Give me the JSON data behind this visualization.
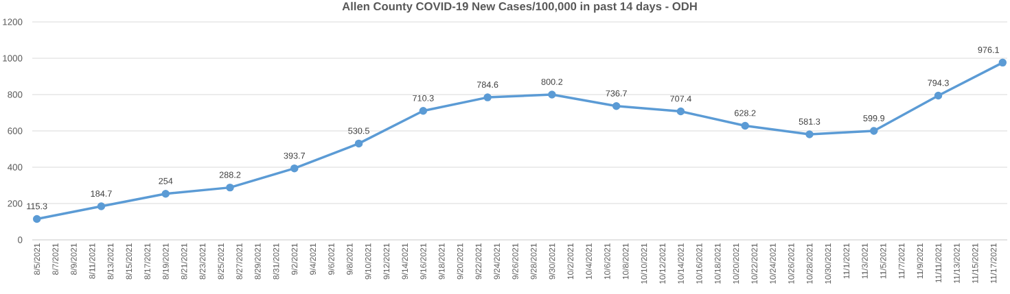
{
  "chart_data": {
    "type": "line",
    "title": "Allen County COVID-19 New Cases/100,000 in past 14 days - ODH",
    "x": [
      "2021-08-05",
      "2021-08-12",
      "2021-08-19",
      "2021-08-26",
      "2021-09-02",
      "2021-09-09",
      "2021-09-16",
      "2021-09-23",
      "2021-09-30",
      "2021-10-07",
      "2021-10-14",
      "2021-10-21",
      "2021-10-28",
      "2021-11-04",
      "2021-11-11",
      "2021-11-18"
    ],
    "values": [
      115.3,
      184.7,
      254,
      288.2,
      393.7,
      530.5,
      710.3,
      784.6,
      800.2,
      736.7,
      707.4,
      628.2,
      581.3,
      599.9,
      794.3,
      976.1
    ],
    "color": "#5b9bd5",
    "marker": "circle",
    "data_labels": true,
    "grid": "y",
    "xlim": [
      "2021-08-04T12:00",
      "2021-11-18T12:00"
    ],
    "xticks": [
      {
        "value": "2021-08-05",
        "label": "8/5/2021"
      },
      {
        "value": "2021-08-07",
        "label": "8/7/2021"
      },
      {
        "value": "2021-08-09",
        "label": "8/9/2021"
      },
      {
        "value": "2021-08-11",
        "label": "8/11/2021"
      },
      {
        "value": "2021-08-13",
        "label": "8/13/2021"
      },
      {
        "value": "2021-08-15",
        "label": "8/15/2021"
      },
      {
        "value": "2021-08-17",
        "label": "8/17/2021"
      },
      {
        "value": "2021-08-19",
        "label": "8/19/2021"
      },
      {
        "value": "2021-08-21",
        "label": "8/21/2021"
      },
      {
        "value": "2021-08-23",
        "label": "8/23/2021"
      },
      {
        "value": "2021-08-25",
        "label": "8/25/2021"
      },
      {
        "value": "2021-08-27",
        "label": "8/27/2021"
      },
      {
        "value": "2021-08-29",
        "label": "8/29/2021"
      },
      {
        "value": "2021-08-31",
        "label": "8/31/2021"
      },
      {
        "value": "2021-09-02",
        "label": "9/2/2021"
      },
      {
        "value": "2021-09-04",
        "label": "9/4/2021"
      },
      {
        "value": "2021-09-06",
        "label": "9/6/2021"
      },
      {
        "value": "2021-09-08",
        "label": "9/8/2021"
      },
      {
        "value": "2021-09-10",
        "label": "9/10/2021"
      },
      {
        "value": "2021-09-12",
        "label": "9/12/2021"
      },
      {
        "value": "2021-09-14",
        "label": "9/14/2021"
      },
      {
        "value": "2021-09-16",
        "label": "9/16/2021"
      },
      {
        "value": "2021-09-18",
        "label": "9/18/2021"
      },
      {
        "value": "2021-09-20",
        "label": "9/20/2021"
      },
      {
        "value": "2021-09-22",
        "label": "9/22/2021"
      },
      {
        "value": "2021-09-24",
        "label": "9/24/2021"
      },
      {
        "value": "2021-09-26",
        "label": "9/26/2021"
      },
      {
        "value": "2021-09-28",
        "label": "9/28/2021"
      },
      {
        "value": "2021-09-30",
        "label": "9/30/2021"
      },
      {
        "value": "2021-10-02",
        "label": "10/2/2021"
      },
      {
        "value": "2021-10-04",
        "label": "10/4/2021"
      },
      {
        "value": "2021-10-06",
        "label": "10/6/2021"
      },
      {
        "value": "2021-10-08",
        "label": "10/8/2021"
      },
      {
        "value": "2021-10-10",
        "label": "10/10/2021"
      },
      {
        "value": "2021-10-12",
        "label": "10/12/2021"
      },
      {
        "value": "2021-10-14",
        "label": "10/14/2021"
      },
      {
        "value": "2021-10-16",
        "label": "10/16/2021"
      },
      {
        "value": "2021-10-18",
        "label": "10/18/2021"
      },
      {
        "value": "2021-10-20",
        "label": "10/20/2021"
      },
      {
        "value": "2021-10-22",
        "label": "10/22/2021"
      },
      {
        "value": "2021-10-24",
        "label": "10/24/2021"
      },
      {
        "value": "2021-10-26",
        "label": "10/26/2021"
      },
      {
        "value": "2021-10-28",
        "label": "10/28/2021"
      },
      {
        "value": "2021-10-30",
        "label": "10/30/2021"
      },
      {
        "value": "2021-11-01",
        "label": "11/1/2021"
      },
      {
        "value": "2021-11-03",
        "label": "11/3/2021"
      },
      {
        "value": "2021-11-05",
        "label": "11/5/2021"
      },
      {
        "value": "2021-11-07",
        "label": "11/7/2021"
      },
      {
        "value": "2021-11-09",
        "label": "11/9/2021"
      },
      {
        "value": "2021-11-11",
        "label": "11/11/2021"
      },
      {
        "value": "2021-11-13",
        "label": "11/13/2021"
      },
      {
        "value": "2021-11-15",
        "label": "11/15/2021"
      },
      {
        "value": "2021-11-17",
        "label": "11/17/2021"
      }
    ],
    "ylim": [
      0,
      1200
    ],
    "yticks": [
      0,
      200,
      400,
      600,
      800,
      1000,
      1200
    ]
  }
}
